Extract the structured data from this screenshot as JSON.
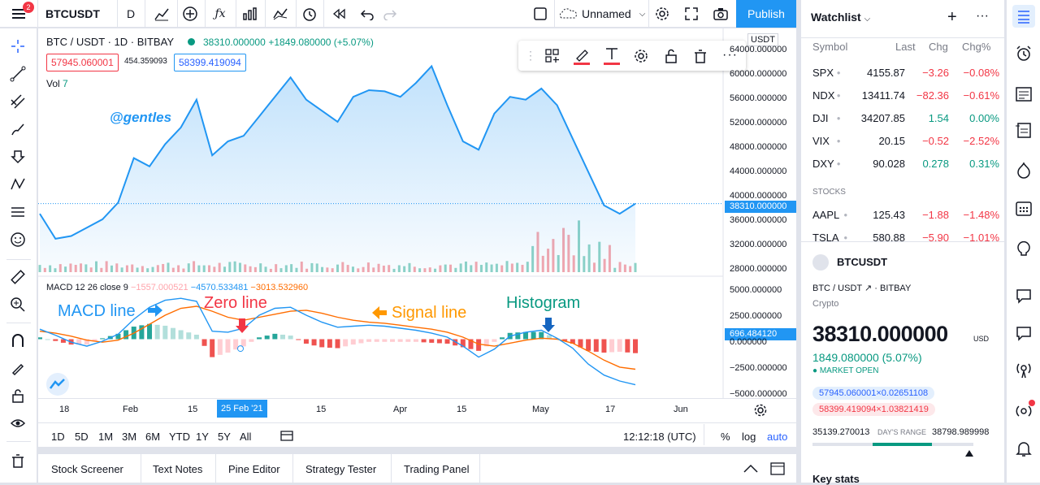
{
  "topbar": {
    "badge": "2",
    "symbol": "BTCUSDT",
    "interval": "D",
    "layout_name": "Unnamed",
    "publish": "Publish"
  },
  "legend": {
    "title": "BTC / USDT · 1D · BITBAY",
    "price": "38310.000000",
    "change": "+1849.080000 (+5.07%)",
    "bid": "57945.060001",
    "spread": "454.359093",
    "ask": "58399.419094",
    "vol_label": "Vol",
    "vol_value": "7"
  },
  "macd": {
    "label": "MACD 12 26 close 9",
    "v1": "−1557.000521",
    "v2": "−4570.533481",
    "v3": "−3013.532960",
    "axis_value": "696.484120"
  },
  "annotations": {
    "author": "@gentles",
    "macd_line": "MACD line",
    "zero_line": "Zero line",
    "signal_line": "Signal line",
    "histogram": "Histogram"
  },
  "currency_tag": "USDT",
  "price_axis": [
    "64000.000000",
    "60000.000000",
    "56000.000000",
    "52000.000000",
    "48000.000000",
    "44000.000000",
    "40000.000000",
    "36000.000000",
    "32000.000000",
    "28000.000000"
  ],
  "current_price_tag": "38310.000000",
  "macd_axis": [
    "5000.000000",
    "2500.000000",
    "0.000000",
    "−2500.000000",
    "−5000.000000"
  ],
  "time_axis": [
    "18",
    "Feb",
    "15",
    "25 Feb '21",
    "15",
    "Apr",
    "15",
    "May",
    "17",
    "Jun"
  ],
  "ranges": [
    "1D",
    "5D",
    "1M",
    "3M",
    "6M",
    "YTD",
    "1Y",
    "5Y",
    "All"
  ],
  "clock": "12:12:18 (UTC)",
  "scale_opts": [
    "%",
    "log",
    "auto"
  ],
  "bottom_tabs": [
    "Stock Screener",
    "Text Notes",
    "Pine Editor",
    "Strategy Tester",
    "Trading Panel"
  ],
  "watchlist": {
    "title": "Watchlist",
    "headers": [
      "Symbol",
      "Last",
      "Chg",
      "Chg%"
    ],
    "rows": [
      {
        "sym": "SPX",
        "last": "4155.87",
        "chg": "−3.26",
        "pct": "−0.08%",
        "dir": "down"
      },
      {
        "sym": "NDX",
        "last": "13411.74",
        "chg": "−82.36",
        "pct": "−0.61%",
        "dir": "down"
      },
      {
        "sym": "DJI",
        "last": "34207.85",
        "chg": "1.54",
        "pct": "0.00%",
        "dir": "up"
      },
      {
        "sym": "VIX",
        "last": "20.15",
        "chg": "−0.52",
        "pct": "−2.52%",
        "dir": "down"
      },
      {
        "sym": "DXY",
        "last": "90.028",
        "chg": "0.278",
        "pct": "0.31%",
        "dir": "up"
      }
    ],
    "section": "STOCKS",
    "stock_rows": [
      {
        "sym": "AAPL",
        "last": "125.43",
        "chg": "−1.88",
        "pct": "−1.48%",
        "dir": "down"
      },
      {
        "sym": "TSLA",
        "last": "580.88",
        "chg": "−5.90",
        "pct": "−1.01%",
        "dir": "down"
      }
    ]
  },
  "details": {
    "symbol": "BTCUSDT",
    "pair": "BTC / USDT",
    "exchange": "BITBAY",
    "type": "Crypto",
    "price": "38310.000000",
    "currency": "USD",
    "change": "1849.080000 (5.07%)",
    "market": "MARKET OPEN",
    "bid": "57945.060001×0.02651108",
    "ask": "58399.419094×1.03821419",
    "range_low": "35139.270013",
    "range_label": "DAY'S RANGE",
    "range_high": "38798.989998",
    "range_fill": 0.74,
    "key_stats": "Key stats"
  },
  "colors": {
    "accent": "#2962ff",
    "up": "#089981",
    "down": "#f23645",
    "line": "#2196f3",
    "signal": "#ff6d00"
  },
  "chart_data": {
    "type": "line",
    "x": [
      "2021-01-18",
      "2021-01-21",
      "2021-01-25",
      "2021-01-28",
      "2021-02-01",
      "2021-02-04",
      "2021-02-08",
      "2021-02-11",
      "2021-02-15",
      "2021-02-18",
      "2021-02-21",
      "2021-02-25",
      "2021-03-01",
      "2021-03-04",
      "2021-03-08",
      "2021-03-11",
      "2021-03-14",
      "2021-03-18",
      "2021-03-22",
      "2021-03-26",
      "2021-03-29",
      "2021-04-01",
      "2021-04-05",
      "2021-04-08",
      "2021-04-11",
      "2021-04-14",
      "2021-04-18",
      "2021-04-22",
      "2021-04-25",
      "2021-04-28",
      "2021-05-01",
      "2021-05-05",
      "2021-05-08",
      "2021-05-11",
      "2021-05-14",
      "2021-05-17",
      "2021-05-19",
      "2021-05-22",
      "2021-05-24"
    ],
    "close": [
      36500,
      32000,
      32500,
      34000,
      35500,
      38500,
      46500,
      45000,
      49000,
      52000,
      57000,
      47000,
      49500,
      50500,
      54000,
      57500,
      61000,
      57000,
      55000,
      53000,
      57500,
      58700,
      58500,
      57500,
      60000,
      63000,
      56000,
      49500,
      48000,
      54500,
      57500,
      57000,
      59000,
      56000,
      50000,
      44000,
      38000,
      36500,
      38310
    ],
    "ylim": [
      26000,
      66000
    ],
    "macd_series": [
      {
        "name": "MACD",
        "values": [
          1000,
          400,
          -300,
          -700,
          -200,
          500,
          2000,
          3200,
          3900,
          4100,
          3800,
          800,
          700,
          1100,
          2400,
          3100,
          3200,
          2400,
          1700,
          1200,
          1300,
          1400,
          1300,
          1100,
          900,
          600,
          200,
          -700,
          -1800,
          -1000,
          300,
          700,
          900,
          100,
          -900,
          -2500,
          -3600,
          -4200,
          -4570
        ]
      },
      {
        "name": "Signal",
        "values": [
          800,
          600,
          300,
          -100,
          -300,
          -100,
          600,
          1500,
          2400,
          3100,
          3300,
          2800,
          2200,
          1900,
          2200,
          2500,
          2800,
          2900,
          2600,
          2200,
          1900,
          1700,
          1600,
          1400,
          1200,
          1000,
          700,
          200,
          -500,
          -700,
          -400,
          -100,
          100,
          0,
          -400,
          -1200,
          -2100,
          -2800,
          -3013
        ]
      }
    ],
    "macd_ylim": [
      -5500,
      5500
    ],
    "volume_max": 100
  }
}
